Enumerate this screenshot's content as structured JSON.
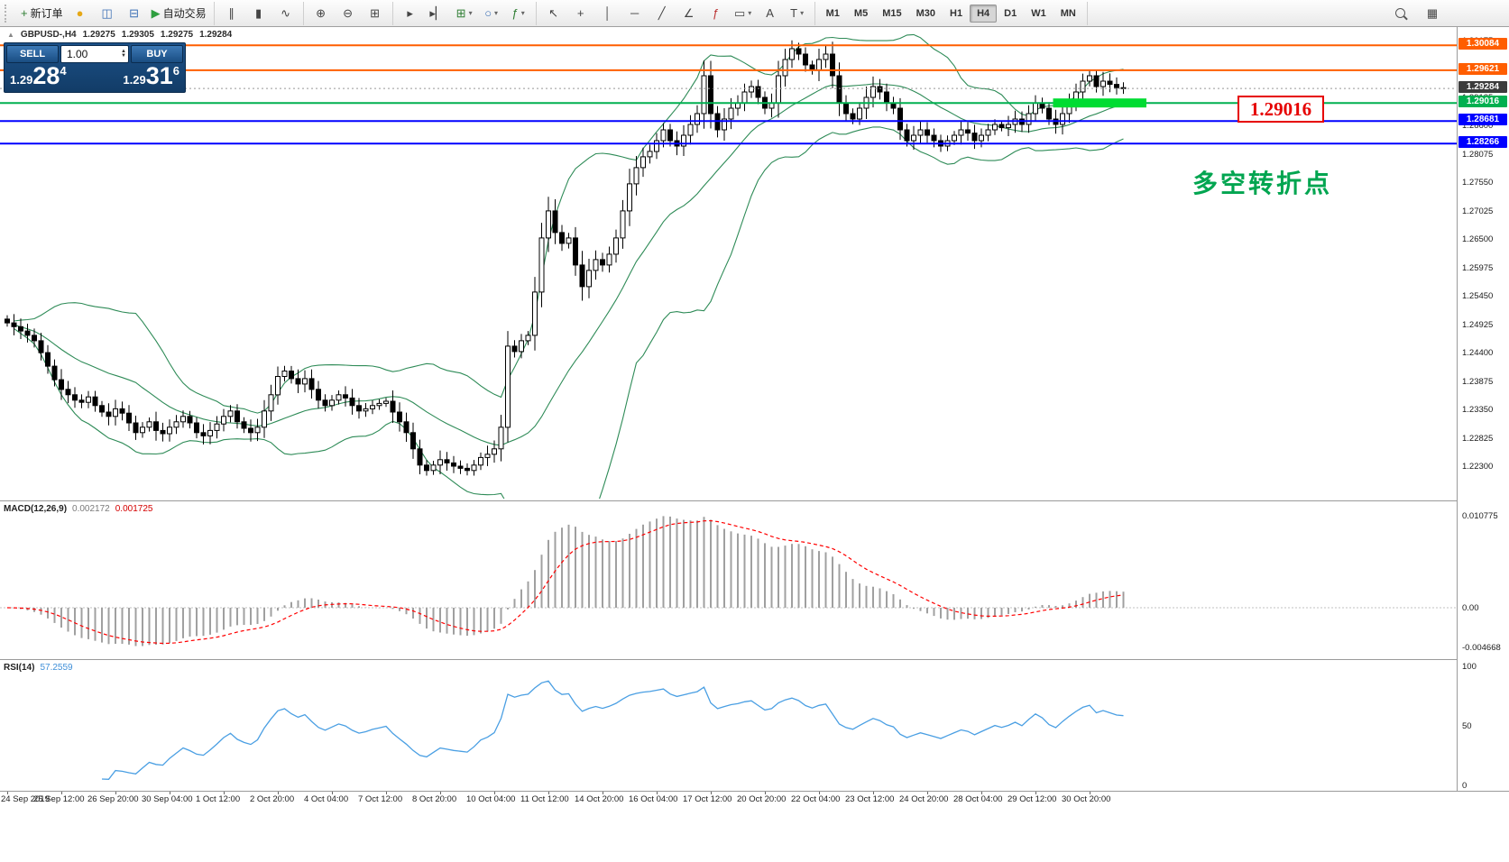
{
  "toolbar": {
    "groups": [
      {
        "name": "orders",
        "items": [
          {
            "name": "new-order-button",
            "glyph": "+",
            "color": "#2e7d32",
            "label": "新订单"
          },
          {
            "name": "sound-alert-button",
            "glyph": "●",
            "color": "#e6a817",
            "label": ""
          },
          {
            "name": "profiles-button",
            "glyph": "◫",
            "color": "#3b6fb5",
            "label": ""
          },
          {
            "name": "terminal-button",
            "glyph": "⊟",
            "color": "#3b6fb5",
            "label": ""
          },
          {
            "name": "auto-trading-button",
            "glyph": "▶",
            "color": "#2e9e3f",
            "label": "自动交易"
          }
        ]
      },
      {
        "name": "chart-types",
        "items": [
          {
            "name": "bar-chart-button",
            "glyph": "∥",
            "color": "#444",
            "label": ""
          },
          {
            "name": "candlestick-chart-button",
            "glyph": "▮",
            "color": "#444",
            "label": ""
          },
          {
            "name": "line-chart-button",
            "glyph": "∿",
            "color": "#444",
            "label": ""
          }
        ]
      },
      {
        "name": "zoom",
        "items": [
          {
            "name": "zoom-in-button",
            "glyph": "⊕",
            "color": "#444",
            "label": ""
          },
          {
            "name": "zoom-out-button",
            "glyph": "⊖",
            "color": "#444",
            "label": ""
          },
          {
            "name": "tile-windows-button",
            "glyph": "⊞",
            "color": "#444",
            "label": ""
          }
        ]
      },
      {
        "name": "windows",
        "items": [
          {
            "name": "auto-scroll-button",
            "glyph": "▸",
            "color": "#444",
            "label": ""
          },
          {
            "name": "chart-shift-button",
            "glyph": "▸▏",
            "color": "#444",
            "label": ""
          },
          {
            "name": "new-chart-button",
            "glyph": "⊞",
            "color": "#2e7d32",
            "label": "",
            "dropdown": true
          },
          {
            "name": "period-button",
            "glyph": "○",
            "color": "#3b6fb5",
            "label": "",
            "dropdown": true
          },
          {
            "name": "indicators-button",
            "glyph": "ƒ",
            "color": "#2e7d32",
            "label": "",
            "dropdown": true
          }
        ]
      },
      {
        "name": "tools",
        "items": [
          {
            "name": "cursor-button",
            "glyph": "↖",
            "color": "#444",
            "label": ""
          },
          {
            "name": "crosshair-button",
            "glyph": "+",
            "color": "#444",
            "label": ""
          },
          {
            "name": "vertical-line-button",
            "glyph": "│",
            "color": "#444",
            "label": ""
          },
          {
            "name": "horizontal-line-button",
            "glyph": "─",
            "color": "#444",
            "label": ""
          },
          {
            "name": "trendline-button",
            "glyph": "╱",
            "color": "#444",
            "label": ""
          },
          {
            "name": "channel-button",
            "glyph": "∠",
            "color": "#444",
            "label": ""
          },
          {
            "name": "fibonacci-button",
            "glyph": "ƒ",
            "color": "#b33",
            "label": ""
          },
          {
            "name": "shapes-button",
            "glyph": "▭",
            "color": "#444",
            "label": "",
            "dropdown": true
          },
          {
            "name": "text-button",
            "glyph": "A",
            "color": "#444",
            "label": ""
          },
          {
            "name": "label-button",
            "glyph": "T",
            "color": "#444",
            "label": "",
            "dropdown": true
          }
        ]
      }
    ],
    "timeframes": [
      "M1",
      "M5",
      "M15",
      "M30",
      "H1",
      "H4",
      "D1",
      "W1",
      "MN"
    ],
    "active_timeframe": "H4"
  },
  "chart_header": {
    "symbol": "GBPUSD-,H4",
    "open": "1.29275",
    "high": "1.29305",
    "low": "1.29275",
    "close": "1.29284"
  },
  "trade_panel": {
    "sell_label": "SELL",
    "buy_label": "BUY",
    "volume": "1.00",
    "sell_price_prefix": "1.29",
    "sell_price_big": "28",
    "sell_price_sup": "4",
    "buy_price_prefix": "1.29",
    "buy_price_big": "31",
    "buy_price_sup": "6"
  },
  "annotations": {
    "price_callout": "1.29016",
    "cn_note": "多空转折点"
  },
  "levels": [
    {
      "value": 1.30084,
      "label": "1.30084",
      "color": "#FF5E00",
      "type": "solid"
    },
    {
      "value": 1.29621,
      "label": "1.29621",
      "color": "#FF5E00",
      "type": "solid"
    },
    {
      "value": 1.29284,
      "label": "1.29284",
      "color": "#3c3c3c",
      "type": "current"
    },
    {
      "value": 1.29016,
      "label": "1.29016",
      "color": "#00B050",
      "type": "solid"
    },
    {
      "value": 1.28681,
      "label": "1.28681",
      "color": "#0000FF",
      "type": "solid"
    },
    {
      "value": 1.28266,
      "label": "1.28266",
      "color": "#0000FF",
      "type": "solid"
    }
  ],
  "indicators": {
    "macd_title": "MACD(12,26,9)",
    "macd_value_main": "0.002172",
    "macd_value_signal": "0.001725",
    "macd_axis": [
      "0.010775",
      "0.00",
      "-0.004668"
    ],
    "rsi_title": "RSI(14)",
    "rsi_value": "57.2559",
    "rsi_axis": [
      "100",
      "50",
      "0"
    ]
  },
  "chart_data": {
    "type": "candlestick",
    "title": "GBPUSD-,H4",
    "y_axis": {
      "min": 1.217,
      "max": 1.3042,
      "tick_start": 1.21775,
      "tick_step": 0.00525,
      "tick_count": 17
    },
    "open_first": 1.2502,
    "closes": [
      1.2495,
      1.2488,
      1.248,
      1.2472,
      1.2462,
      1.244,
      1.2415,
      1.239,
      1.2372,
      1.2362,
      1.2352,
      1.2348,
      1.2358,
      1.2342,
      1.233,
      1.2322,
      1.2336,
      1.2328,
      1.231,
      1.2292,
      1.2302,
      1.2312,
      1.2296,
      1.229,
      1.2302,
      1.2312,
      1.2322,
      1.231,
      1.2292,
      1.2286,
      1.2296,
      1.2308,
      1.2322,
      1.2332,
      1.2312,
      1.23,
      1.2292,
      1.2302,
      1.2332,
      1.2362,
      1.2396,
      1.2406,
      1.2392,
      1.2382,
      1.2392,
      1.2372,
      1.2352,
      1.2342,
      1.2352,
      1.2362,
      1.2356,
      1.2342,
      1.2332,
      1.2336,
      1.2342,
      1.2346,
      1.235,
      1.233,
      1.2312,
      1.2292,
      1.2262,
      1.2232,
      1.2222,
      1.2232,
      1.2242,
      1.2236,
      1.223,
      1.2226,
      1.2222,
      1.2232,
      1.2246,
      1.2252,
      1.2262,
      1.2302,
      1.2452,
      1.2442,
      1.2462,
      1.2472,
      1.2552,
      1.2652,
      1.2702,
      1.2662,
      1.2642,
      1.2652,
      1.2602,
      1.2562,
      1.2592,
      1.2612,
      1.2602,
      1.2622,
      1.2652,
      1.2702,
      1.2752,
      1.2782,
      1.2802,
      1.2812,
      1.2832,
      1.2852,
      1.2832,
      1.2822,
      1.2842,
      1.2862,
      1.2882,
      1.2952,
      1.2882,
      1.2852,
      1.2872,
      1.2892,
      1.2902,
      1.2922,
      1.2932,
      1.2912,
      1.2892,
      1.2902,
      1.2952,
      1.2982,
      1.3002,
      1.2992,
      1.2972,
      1.2962,
      1.2982,
      1.2992,
      1.2952,
      1.2902,
      1.2882,
      1.2872,
      1.2892,
      1.2912,
      1.2932,
      1.2922,
      1.2902,
      1.2892,
      1.2852,
      1.2832,
      1.2842,
      1.2852,
      1.2842,
      1.2832,
      1.2822,
      1.2832,
      1.2842,
      1.2852,
      1.2846,
      1.2832,
      1.2842,
      1.2852,
      1.2862,
      1.2856,
      1.2862,
      1.2872,
      1.2862,
      1.2882,
      1.2902,
      1.2892,
      1.2872,
      1.2862,
      1.2882,
      1.2902,
      1.2922,
      1.2942,
      1.2952,
      1.2932,
      1.2942,
      1.2936,
      1.293,
      1.29284
    ],
    "x_labels": [
      "24 Sep 2019",
      "25 Sep 12:00",
      "26 Sep 20:00",
      "30 Sep 04:00",
      "1 Oct 12:00",
      "2 Oct 20:00",
      "4 Oct 04:00",
      "7 Oct 12:00",
      "8 Oct 20:00",
      "10 Oct 04:00",
      "11 Oct 12:00",
      "14 Oct 20:00",
      "16 Oct 04:00",
      "17 Oct 12:00",
      "20 Oct 20:00",
      "22 Oct 04:00",
      "23 Oct 12:00",
      "24 Oct 20:00",
      "28 Oct 04:00",
      "29 Oct 12:00",
      "30 Oct 20:00"
    ],
    "x_label_step": 8,
    "bollinger": {
      "period": 20,
      "deviation": 2,
      "color": "#2E8B57"
    },
    "macd_range": [
      -0.0058,
      0.012433
    ],
    "rsi_range": [
      -4.4,
      105.2
    ],
    "highlight": {
      "value": 1.29016,
      "from_index": 155,
      "to_index": 168,
      "color": "#00DC32"
    }
  }
}
